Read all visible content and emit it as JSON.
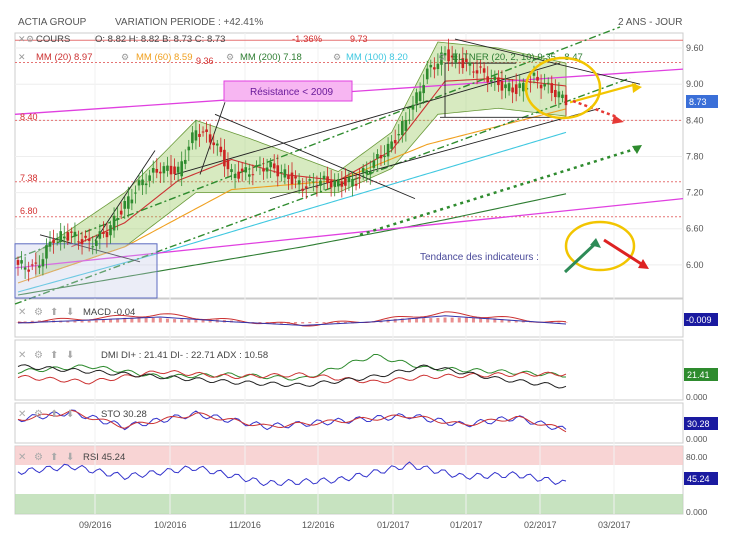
{
  "header": {
    "instrument": "ACTIA GROUP",
    "variation": "VARIATION PERIODE : +42.41%",
    "period": "2 ANS - JOUR"
  },
  "legend": {
    "cours": "COURS",
    "ohlc": "O: 8.82    H: 8.82    B: 8.73    C: 8.73",
    "change": "-1.36%",
    "mm20": "MM (20) 8.97",
    "mm60": "MM (60) 8.59",
    "mm200": "MM (200) 7.18",
    "mm100": "MM (100) 8.20",
    "extra": "ELTNER (20, 2, 10) 9.35 - 8.47"
  },
  "colors": {
    "candle_up": "#2e8b2e",
    "candle_down": "#cc2222",
    "mm20": "#cc3333",
    "mm60": "#f0a020",
    "mm100": "#40c8e0",
    "mm200": "#2e7d32",
    "resistance": "#e040e0",
    "band_fill": "#8bc34a",
    "price_tag": "#3a6fd8",
    "rsi": "#3333cc"
  },
  "annotations": {
    "resistance_label": "Résistance < 2009",
    "trend_label": "Tendance des indicateurs :",
    "level_973": "9.73",
    "level_936": "9.36",
    "level_840": "8.40",
    "level_738": "7.38",
    "level_680": "6.80"
  },
  "price_tag": "8.73",
  "indicators": {
    "macd_label": "MACD -0.04",
    "macd_tag": "-0.009",
    "dmi_label": "DMI DI+ : 21.41 DI- : 22.71 ADX : 10.58",
    "dmi_tag": "21.41",
    "dmi_zero": "0.000",
    "sto_label": "STO 30.28",
    "sto_tag": "30.28",
    "sto_zero": "0.000",
    "rsi_label": "RSI 45.24",
    "rsi_tag": "45.24",
    "rsi_80": "80.00",
    "rsi_zero": "0.000"
  },
  "chart_data": {
    "type": "candlestick",
    "x_ticks": [
      "09/2016",
      "10/2016",
      "11/2016",
      "12/2016",
      "01/2017",
      "01/2017",
      "02/2017",
      "03/2017"
    ],
    "y_ticks": [
      6.0,
      6.6,
      7.2,
      7.8,
      8.4,
      9.0,
      9.6
    ],
    "ylim": [
      5.45,
      9.85
    ],
    "horizontal_levels": [
      9.73,
      9.36,
      8.4,
      7.38,
      6.8
    ],
    "last_close": 8.73,
    "close_anchors": [
      [
        0,
        6.0
      ],
      [
        5,
        5.95
      ],
      [
        10,
        6.45
      ],
      [
        15,
        6.5
      ],
      [
        20,
        6.35
      ],
      [
        25,
        6.55
      ],
      [
        30,
        7.0
      ],
      [
        35,
        7.4
      ],
      [
        40,
        7.6
      ],
      [
        45,
        7.55
      ],
      [
        50,
        8.25
      ],
      [
        55,
        8.05
      ],
      [
        60,
        7.5
      ],
      [
        65,
        7.55
      ],
      [
        70,
        7.65
      ],
      [
        75,
        7.5
      ],
      [
        80,
        7.3
      ],
      [
        85,
        7.4
      ],
      [
        90,
        7.35
      ],
      [
        95,
        7.4
      ],
      [
        100,
        7.7
      ],
      [
        105,
        8.0
      ],
      [
        110,
        8.5
      ],
      [
        115,
        9.2
      ],
      [
        120,
        9.5
      ],
      [
        125,
        9.35
      ],
      [
        130,
        9.2
      ],
      [
        135,
        9.0
      ],
      [
        140,
        8.9
      ],
      [
        145,
        9.1
      ],
      [
        150,
        8.9
      ],
      [
        154,
        8.73
      ]
    ],
    "mm20_anchors": [
      [
        15,
        6.3
      ],
      [
        30,
        6.7
      ],
      [
        45,
        7.4
      ],
      [
        60,
        7.75
      ],
      [
        75,
        7.5
      ],
      [
        90,
        7.4
      ],
      [
        105,
        7.9
      ],
      [
        120,
        9.05
      ],
      [
        135,
        9.1
      ],
      [
        154,
        8.97
      ]
    ],
    "mm60_anchors": [
      [
        0,
        5.7
      ],
      [
        30,
        6.3
      ],
      [
        60,
        7.25
      ],
      [
        90,
        7.4
      ],
      [
        115,
        8.0
      ],
      [
        154,
        8.59
      ]
    ],
    "mm100_anchors": [
      [
        0,
        5.55
      ],
      [
        40,
        6.2
      ],
      [
        80,
        6.9
      ],
      [
        120,
        7.6
      ],
      [
        154,
        8.2
      ]
    ],
    "mm200_anchors": [
      [
        0,
        5.5
      ],
      [
        40,
        5.9
      ],
      [
        80,
        6.3
      ],
      [
        120,
        6.75
      ],
      [
        154,
        7.18
      ]
    ],
    "band_upper_anchors": [
      [
        5,
        6.2
      ],
      [
        30,
        7.2
      ],
      [
        50,
        8.4
      ],
      [
        65,
        8.1
      ],
      [
        90,
        7.55
      ],
      [
        105,
        8.2
      ],
      [
        118,
        9.7
      ],
      [
        135,
        9.6
      ],
      [
        154,
        9.35
      ]
    ],
    "band_lower_anchors": [
      [
        5,
        5.8
      ],
      [
        30,
        6.3
      ],
      [
        50,
        7.2
      ],
      [
        65,
        7.2
      ],
      [
        90,
        7.2
      ],
      [
        105,
        7.6
      ],
      [
        118,
        8.5
      ],
      [
        135,
        8.6
      ],
      [
        154,
        8.47
      ]
    ],
    "macd": [
      [
        0,
        0.0
      ],
      [
        20,
        0.12
      ],
      [
        40,
        0.25
      ],
      [
        60,
        0.05
      ],
      [
        80,
        -0.1
      ],
      [
        100,
        0.05
      ],
      [
        120,
        0.3
      ],
      [
        135,
        0.15
      ],
      [
        154,
        -0.04
      ]
    ],
    "dmi_plus": [
      [
        0,
        25
      ],
      [
        20,
        30
      ],
      [
        40,
        20
      ],
      [
        60,
        22
      ],
      [
        80,
        18
      ],
      [
        100,
        40
      ],
      [
        115,
        28
      ],
      [
        135,
        25
      ],
      [
        154,
        21.41
      ]
    ],
    "dmi_minus": [
      [
        0,
        20
      ],
      [
        20,
        15
      ],
      [
        40,
        25
      ],
      [
        60,
        20
      ],
      [
        80,
        22
      ],
      [
        100,
        15
      ],
      [
        115,
        20
      ],
      [
        135,
        22
      ],
      [
        154,
        22.71
      ]
    ],
    "adx": [
      [
        0,
        30
      ],
      [
        20,
        25
      ],
      [
        40,
        20
      ],
      [
        60,
        15
      ],
      [
        80,
        12
      ],
      [
        100,
        20
      ],
      [
        115,
        30
      ],
      [
        135,
        18
      ],
      [
        154,
        10.58
      ]
    ],
    "sto": [
      [
        0,
        60
      ],
      [
        15,
        80
      ],
      [
        30,
        40
      ],
      [
        50,
        75
      ],
      [
        70,
        40
      ],
      [
        90,
        55
      ],
      [
        110,
        70
      ],
      [
        125,
        45
      ],
      [
        140,
        65
      ],
      [
        154,
        30.28
      ]
    ],
    "rsi": [
      [
        0,
        62
      ],
      [
        15,
        70
      ],
      [
        30,
        55
      ],
      [
        50,
        68
      ],
      [
        70,
        45
      ],
      [
        90,
        50
      ],
      [
        110,
        72
      ],
      [
        125,
        55
      ],
      [
        140,
        58
      ],
      [
        154,
        45.24
      ]
    ]
  }
}
